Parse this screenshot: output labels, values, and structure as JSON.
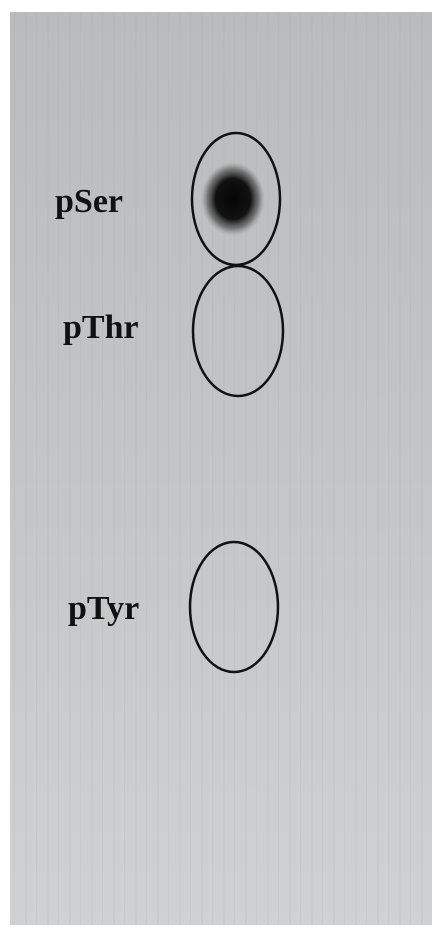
{
  "spots": [
    {
      "label": "pSer"
    },
    {
      "label": "pThr"
    },
    {
      "label": "pTyr"
    }
  ]
}
